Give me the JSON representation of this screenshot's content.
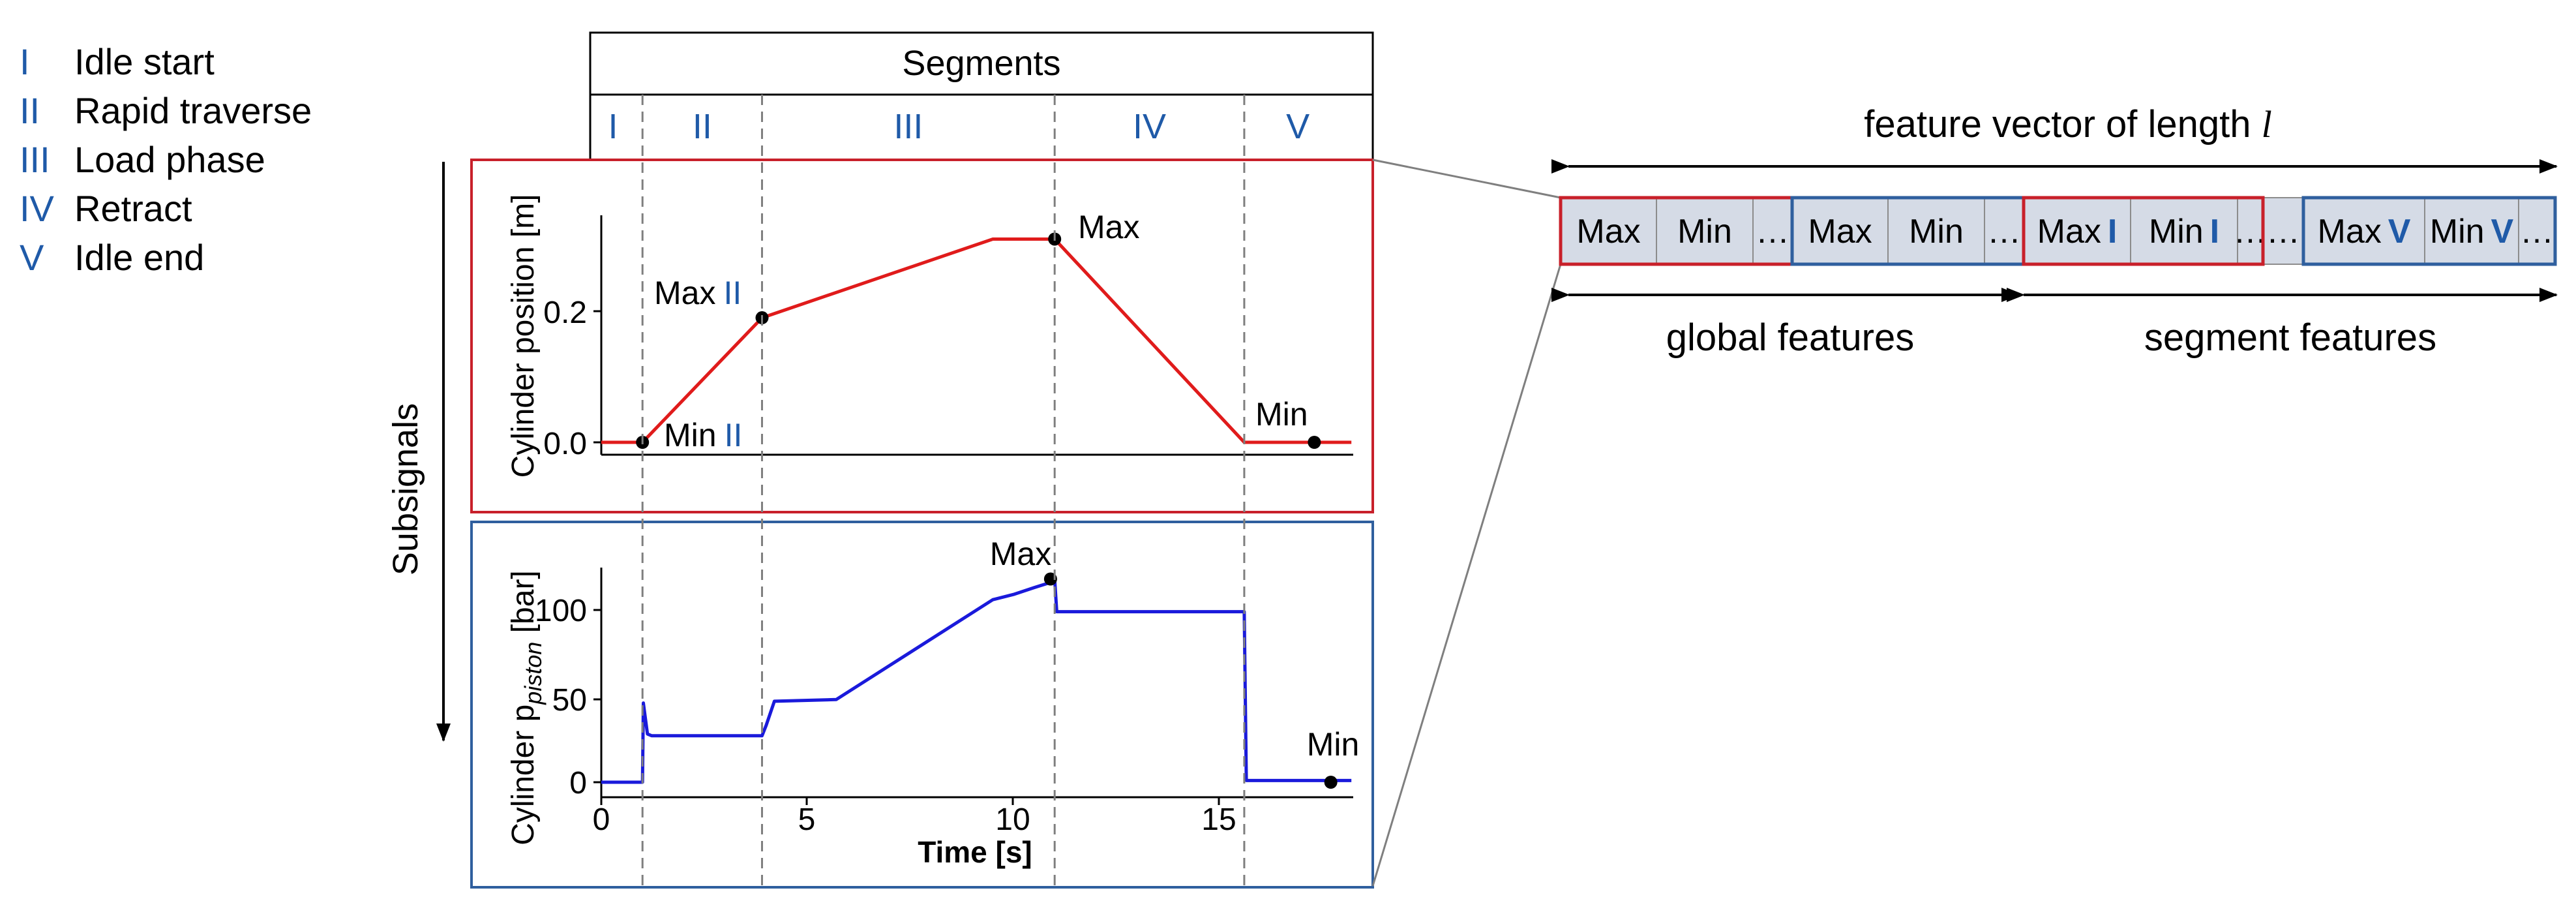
{
  "legend": [
    {
      "numeral": "I",
      "label": "Idle start"
    },
    {
      "numeral": "II",
      "label": "Rapid traverse"
    },
    {
      "numeral": "III",
      "label": "Load phase"
    },
    {
      "numeral": "IV",
      "label": "Retract"
    },
    {
      "numeral": "V",
      "label": "Idle end"
    }
  ],
  "segments": {
    "title": "Segments",
    "labels": [
      "I",
      "II",
      "III",
      "IV",
      "V"
    ],
    "boundaries_s": [
      1.0,
      3.9,
      11.0,
      15.6
    ]
  },
  "subsignals_label": "Subsignals",
  "colors": {
    "segment_numerals": "#1f5aa8",
    "position_line": "#e01b1b",
    "pressure_line": "#1a1adb",
    "position_panel_border": "#c8202a",
    "pressure_panel_border": "#2f5f9e",
    "feature_cell_fill": "#d5dbe6"
  },
  "top_plot": {
    "ylabel": "Cylinder position [m]",
    "yticks": [
      "0.0",
      "0.2"
    ],
    "annotations": {
      "max": "Max",
      "max_ii": "Max",
      "max_ii_numeral": "II",
      "min": "Min",
      "min_ii": "Min",
      "min_ii_numeral": "II"
    }
  },
  "bottom_plot": {
    "ylabel": "Cylinder p",
    "ylabel_subscript": "piston",
    "ylabel_unit": " [bar]",
    "xlabel": "Time [s]",
    "xticks": [
      "0",
      "5",
      "10",
      "15"
    ],
    "yticks": [
      "0",
      "50",
      "100"
    ],
    "annotations": {
      "max": "Max",
      "min": "Min"
    }
  },
  "chart_data": [
    {
      "type": "line",
      "ylabel": "Cylinder position [m]",
      "xlim": [
        0,
        18.2
      ],
      "ylim": [
        -0.02,
        0.36
      ],
      "x": [
        0,
        1.0,
        3.9,
        9.5,
        11.0,
        15.6,
        18.2
      ],
      "y": [
        0.0,
        0.0,
        0.19,
        0.31,
        0.31,
        0.0,
        0.0
      ],
      "markers": [
        {
          "label": "Min II",
          "x": 1.0,
          "y": 0.0
        },
        {
          "label": "Max II",
          "x": 3.9,
          "y": 0.19
        },
        {
          "label": "Max",
          "x": 11.0,
          "y": 0.31
        },
        {
          "label": "Min",
          "x": 17.3,
          "y": 0.0
        }
      ]
    },
    {
      "type": "line",
      "ylabel": "Cylinder p piston [bar]",
      "xlabel": "Time [s]",
      "xlim": [
        0,
        18.2
      ],
      "ylim": [
        -3,
        125
      ],
      "x": [
        0,
        1.0,
        1.02,
        1.12,
        1.22,
        3.9,
        4.0,
        4.2,
        5.7,
        9.5,
        10.0,
        10.5,
        10.9,
        11.0,
        11.05,
        15.6,
        15.65,
        18.2
      ],
      "y": [
        0,
        0,
        46,
        28,
        27,
        27,
        33,
        47,
        48,
        106,
        109,
        113,
        116,
        118,
        99,
        99,
        1,
        1
      ],
      "markers": [
        {
          "label": "Max",
          "x": 10.9,
          "y": 118
        },
        {
          "label": "Min",
          "x": 17.7,
          "y": 0
        }
      ]
    }
  ],
  "feature_vector": {
    "title": "feature vector of length ",
    "title_var": "l",
    "global_label": "global features",
    "segment_label": "segment features",
    "global_cells": [
      "Max",
      "Min",
      "…",
      "Max",
      "Min",
      "…"
    ],
    "segment_cells": [
      {
        "text": "Max",
        "numeral": "I"
      },
      {
        "text": "Min",
        "numeral": "I"
      },
      {
        "text": "…",
        "numeral": ""
      },
      {
        "text": "…",
        "numeral": ""
      },
      {
        "text": "Max",
        "numeral": "V"
      },
      {
        "text": "Min",
        "numeral": "V"
      },
      {
        "text": "…",
        "numeral": ""
      }
    ]
  }
}
